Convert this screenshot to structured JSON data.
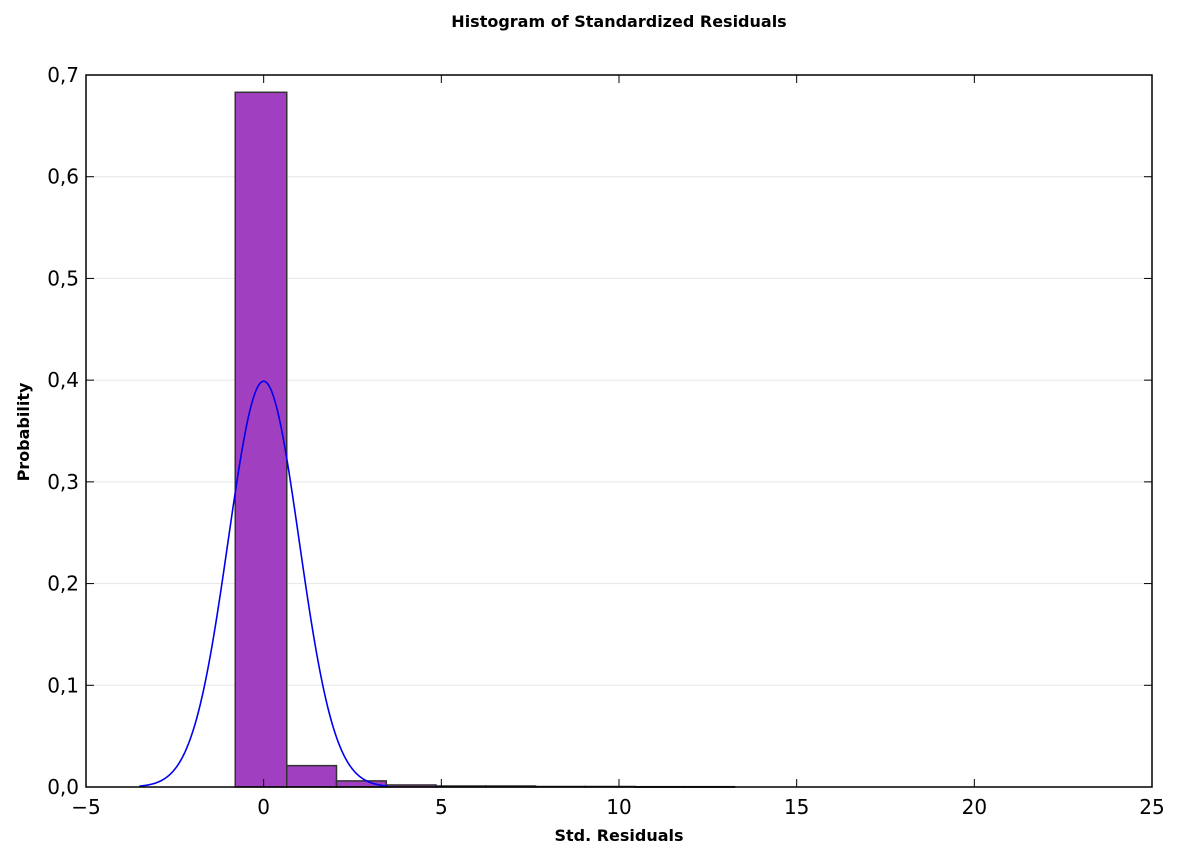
{
  "chart_data": {
    "type": "bar",
    "title": "Histogram of Standardized Residuals",
    "xlabel": "Std. Residuals",
    "ylabel": "Probability",
    "xlim": [
      -5,
      25
    ],
    "ylim": [
      0,
      0.7
    ],
    "x_ticks": [
      -5,
      0,
      5,
      10,
      15,
      20,
      25
    ],
    "x_tick_labels": [
      "−5",
      "0",
      "5",
      "10",
      "15",
      "20",
      "25"
    ],
    "y_ticks": [
      0,
      0.1,
      0.2,
      0.3,
      0.4,
      0.5,
      0.6,
      0.7
    ],
    "y_tick_labels": [
      "0,0",
      "0,1",
      "0,2",
      "0,3",
      "0,4",
      "0,5",
      "0,6",
      "0,7"
    ],
    "grid": "horizontal",
    "bins": [
      {
        "x0": -0.8,
        "x1": 0.65,
        "value": 0.683
      },
      {
        "x0": 0.65,
        "x1": 2.05,
        "value": 0.021
      },
      {
        "x0": 2.05,
        "x1": 3.45,
        "value": 0.006
      },
      {
        "x0": 3.45,
        "x1": 4.85,
        "value": 0.002
      },
      {
        "x0": 4.85,
        "x1": 6.25,
        "value": 0.001
      },
      {
        "x0": 6.25,
        "x1": 7.65,
        "value": 0.001
      },
      {
        "x0": 7.65,
        "x1": 9.05,
        "value": 0.0005
      },
      {
        "x0": 9.05,
        "x1": 10.45,
        "value": 0.0005
      },
      {
        "x0": 10.45,
        "x1": 11.85,
        "value": 0.0003
      },
      {
        "x0": 11.85,
        "x1": 13.25,
        "value": 0.0003
      }
    ],
    "bar_color": "#a040c0",
    "bar_edge_color": "#333333",
    "curve": {
      "type": "normal-pdf",
      "mean": 0,
      "std": 1,
      "x_range": [
        -3.5,
        3.5
      ],
      "color": "#0000ee"
    }
  }
}
